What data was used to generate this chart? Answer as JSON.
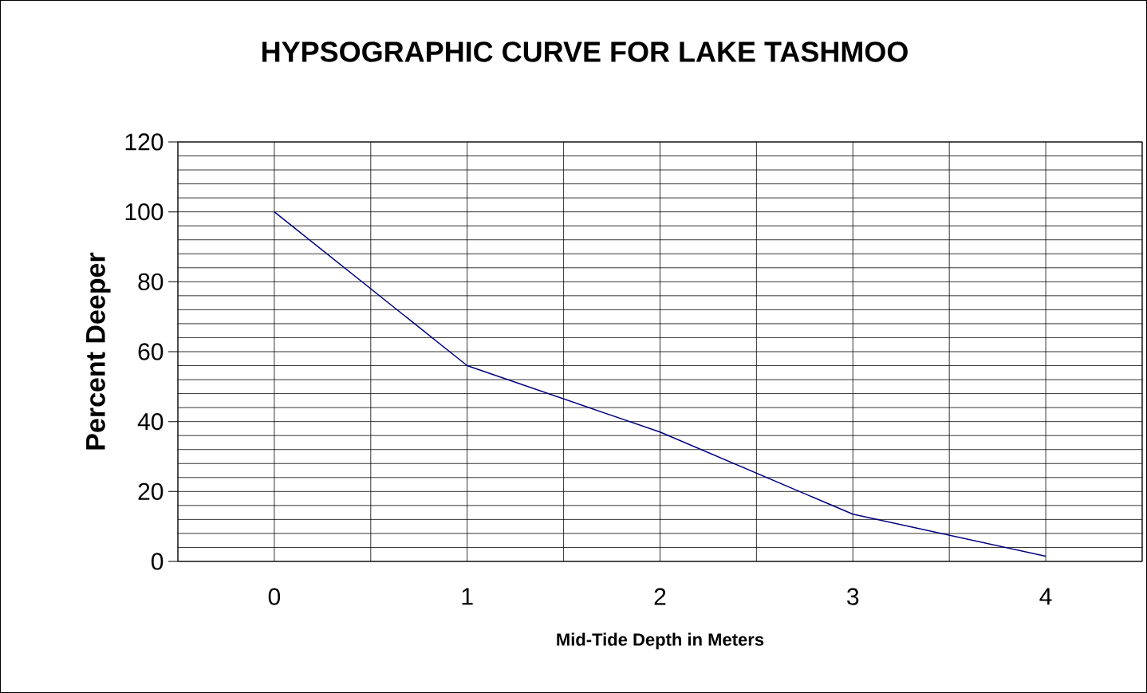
{
  "chart_data": {
    "type": "line",
    "title": "HYPSOGRAPHIC CURVE FOR LAKE TASHMOO",
    "xlabel": "Mid-Tide Depth in Meters",
    "ylabel": "Percent Deeper",
    "x": [
      0,
      1,
      2,
      3,
      4
    ],
    "series": [
      {
        "color": "#000080",
        "values": [
          100,
          56,
          37,
          13.5,
          1.5
        ]
      }
    ],
    "xlim": [
      -0.5,
      4.5
    ],
    "xticks": [
      {
        "value": -0.5,
        "label": null
      },
      0,
      {
        "value": 0.5,
        "label": null
      },
      1,
      {
        "value": 1.5,
        "label": null
      },
      2,
      {
        "value": 2.5,
        "label": null
      },
      3,
      {
        "value": 3.5,
        "label": null
      },
      4,
      {
        "value": 4.5,
        "label": null
      }
    ],
    "ylim": [
      0,
      120
    ],
    "yticks": [
      0,
      20,
      40,
      60,
      80,
      100,
      120
    ],
    "grid": true,
    "marker": "none",
    "line_style": "solid"
  }
}
